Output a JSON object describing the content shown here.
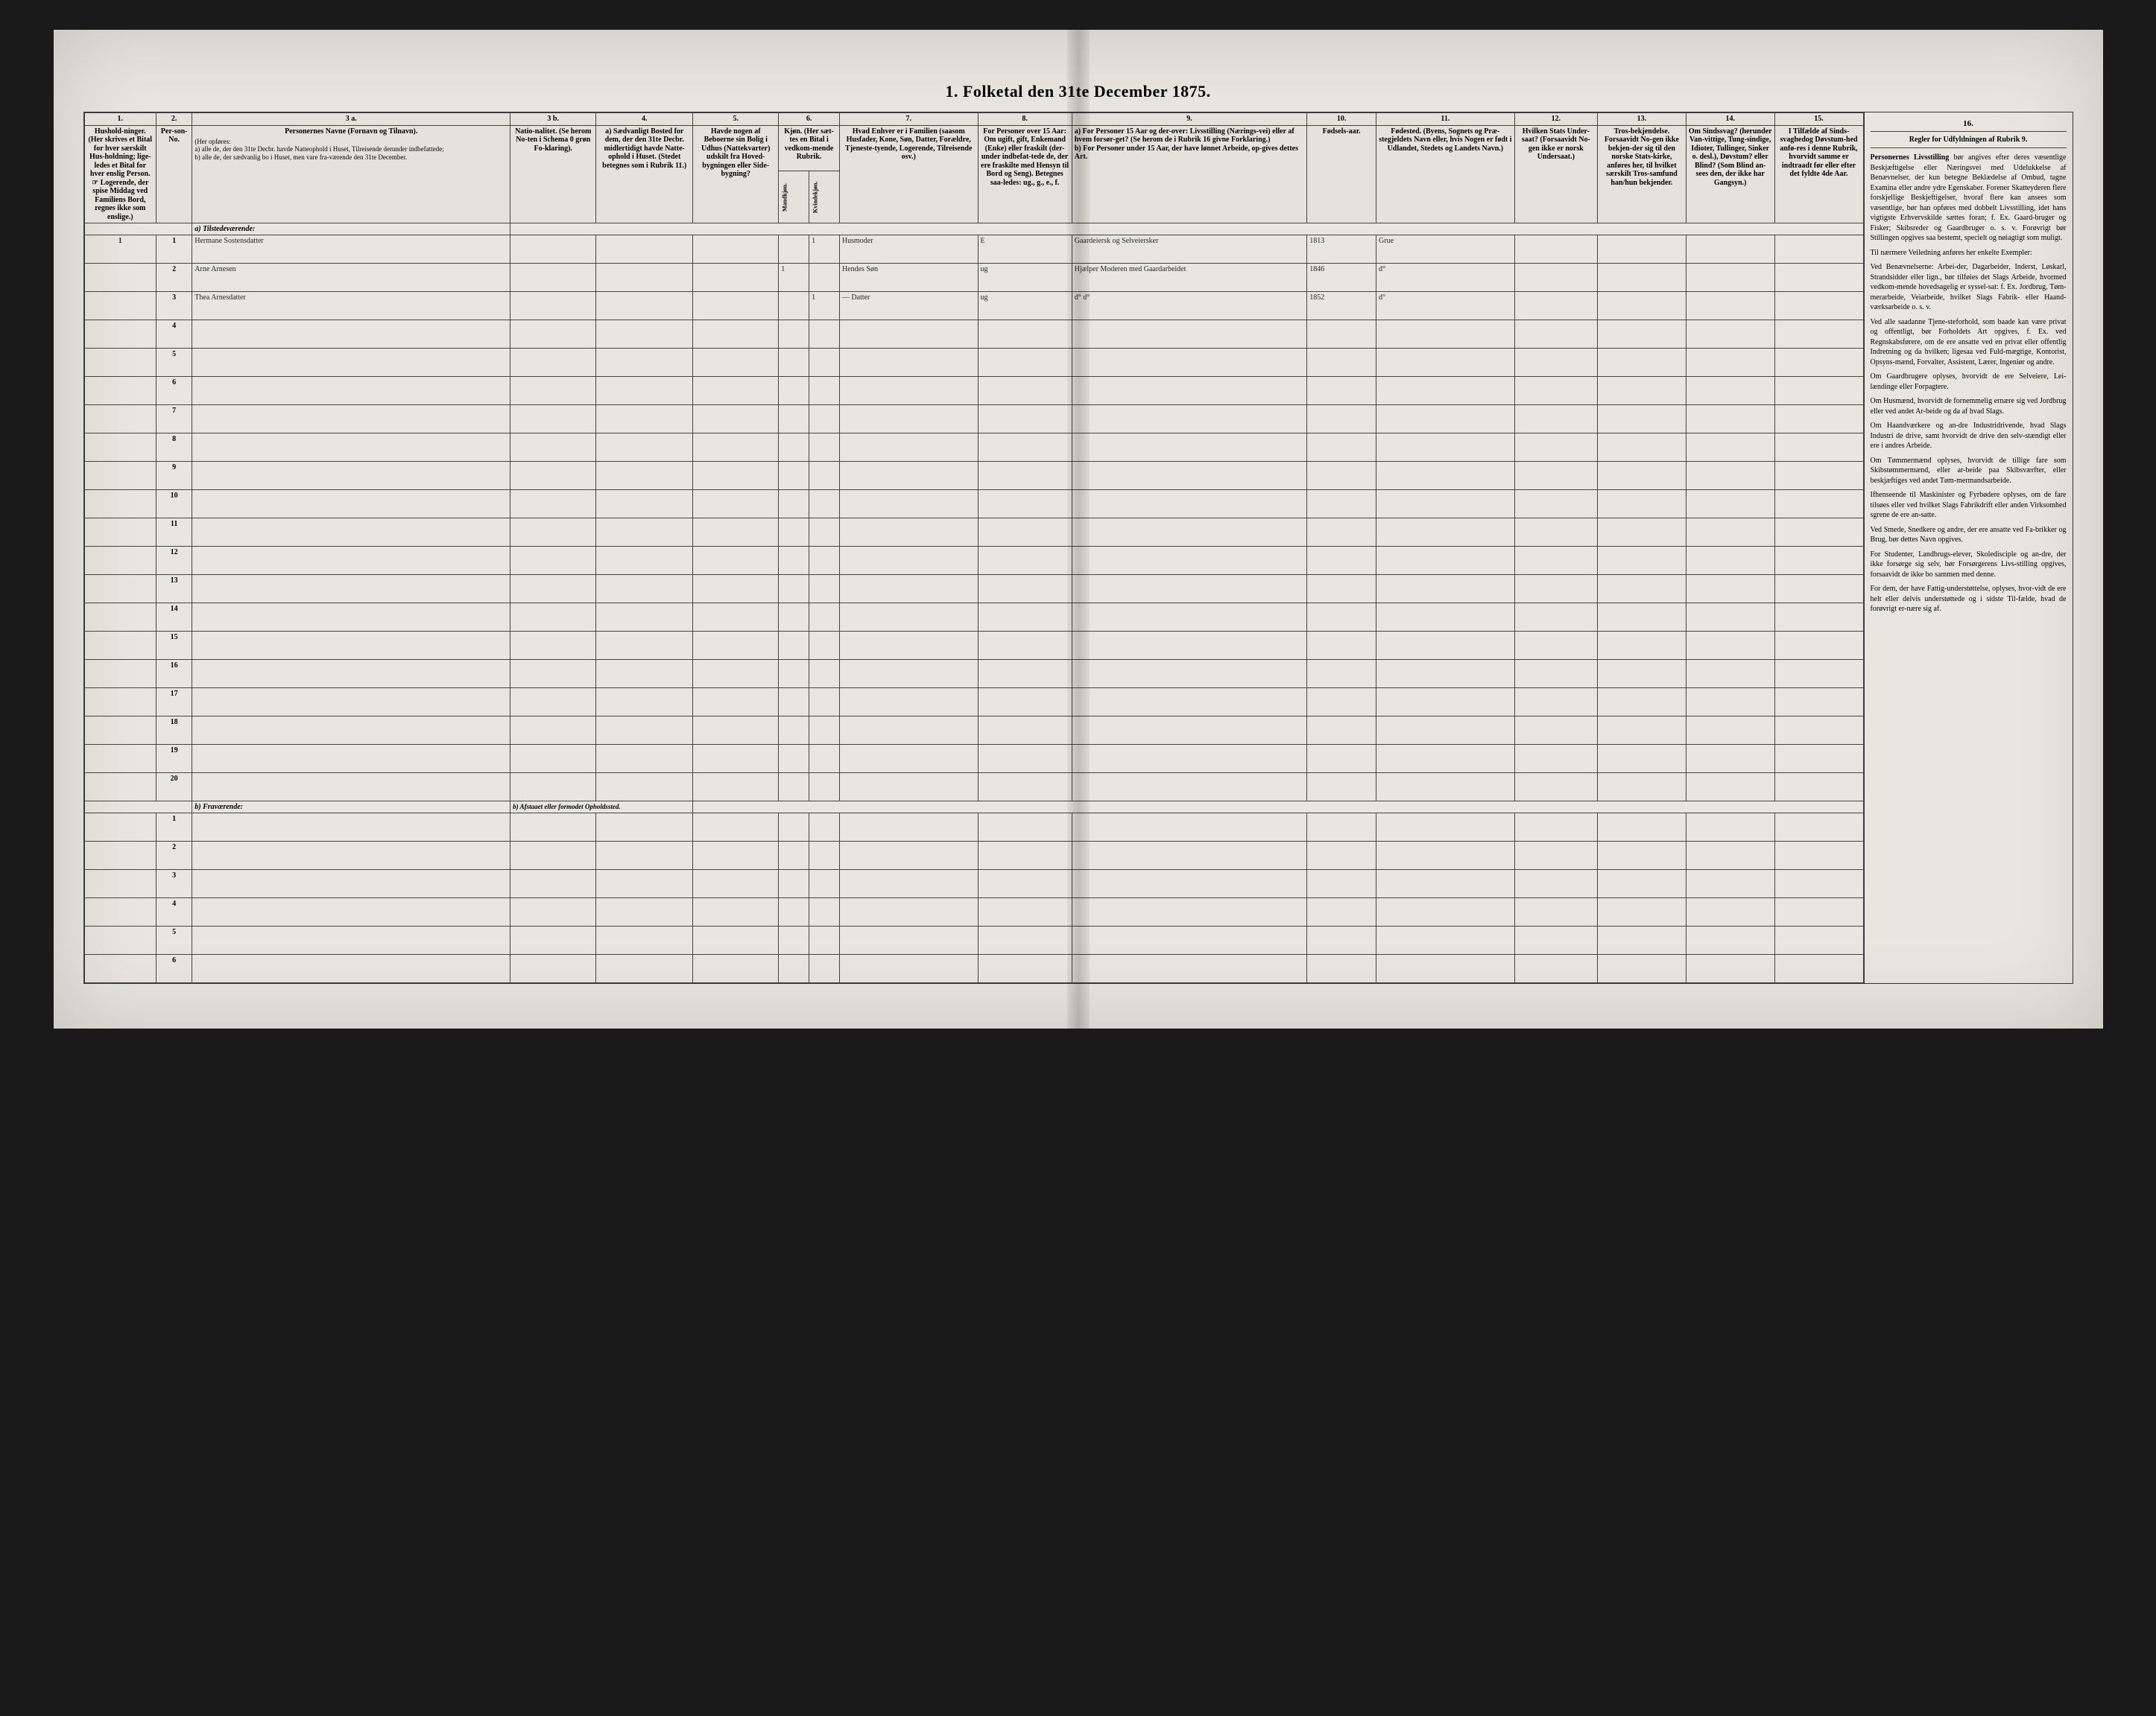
{
  "title": "1. Folketal den 31te December 1875.",
  "columns": {
    "nums": [
      "1.",
      "2.",
      "3 a.",
      "3 b.",
      "4.",
      "5.",
      "6.",
      "7.",
      "8.",
      "9.",
      "10.",
      "11.",
      "12.",
      "13.",
      "14.",
      "15.",
      "16."
    ],
    "h1": "Hushold-ninger. (Her skrives et Bital for hver særskilt Hus-holdning; lige-ledes et Bital for hver enslig Person. ☞ Logerende, der spise Middag ved Familiens Bord, regnes ikke som enslige.)",
    "h2": "Per-son-No.",
    "h3a_title": "Personernes Navne (Fornavn og Tilnavn).",
    "h3a_body": "(Her opføres:\na) alle de, der den 31te Decbr. havde Natteophold i Huset, Tilreisende derunder indbefattede;\nb) alle de, der sædvanlig bo i Huset, men vare fra-værende den 31te December.",
    "h3b": "Natio-nalitet. (Se herom No-ten i Schema 0 grøn Fo-klaring).",
    "h4": "a) Sædvanligt Bosted for dem, der den 31te Decbr. midlertidigt havde Natte-ophold i Huset. (Stedet betegnes som i Rubrik 11.)",
    "h5": "Havde nogen af Beboerne sin Bolig i Udhus (Nattekvarter) udskilt fra Hoved-bygningen eller Side-bygning?",
    "h6": "Kjøn. (Her sæt-tes en Bital i vedkom-mende Rubrik.",
    "h6a": "Mandkjøn.",
    "h6b": "Kvindekjøn.",
    "h7": "Hvad Enhver er i Familien (saasom Husfader, Kone, Søn, Datter, Forældre, Tjeneste-tyende, Logerende, Tilreisende osv.)",
    "h8": "For Personer over 15 Aar: Om ugift, gift, Enkemand (Enke) eller fraskilt (der-under indbefat-tede de, der ere fraskilte med Hensyn til Bord og Seng). Betegnes saa-ledes: ug., g., e., f.",
    "h9": "a) For Personer 15 Aar og der-over: Livsstilling (Nærings-vei) eller af hvem forsør-get? (Se herom de i Rubrik 16 givne Forklaring.)\nb) For Personer under 15 Aar, der have lønnet Arbeide, op-gives dettes Art.",
    "h10": "Fødsels-aar.",
    "h11": "Fødested. (Byens, Sognets og Præ-stegjeldets Navn eller, hvis Nogen er født i Udlandet, Stedets og Landets Navn.)",
    "h12": "Hvilken Stats Under-saat? (Forsaavidt No-gen ikke er norsk Undersaat.)",
    "h13": "Tros-bekjendelse. Forsaavidt No-gen ikke bekjen-der sig til den norske Stats-kirke, anføres her, til hvilket særskilt Tros-samfund han/hun bekjender.",
    "h14": "Om Sindssvag? (herunder Van-vittige, Tung-sindige, Idioter, Tullinger, Sinker o. desl.), Døvstum? eller Blind? (Som Blind an-sees den, der ikke har Gangsyn.)",
    "h15": "I Tilfælde af Sinds-svaghedog Døvstum-hed anfø-res i denne Rubrik, hvorvidt samme er indtraadt før eller efter det fyldte 4de Aar.",
    "h16": "Regler for Udfyldningen af Rubrik 9."
  },
  "section_a": "a) Tilstedeværende:",
  "section_b": "b) Fraværende:",
  "section_b_right": "b) Afstaaet eller formodet Opholdssted.",
  "rows_a": [
    {
      "hh": "1",
      "pn": "1",
      "name": "Hermane Sostensdatter",
      "mk": "",
      "kv": "1",
      "fam": "Husmoder",
      "civ": "E",
      "occ": "Gaardeiersk og Selveiersker",
      "yr": "1813",
      "born": "Grue"
    },
    {
      "hh": "",
      "pn": "2",
      "name": "Arne Arnesen",
      "mk": "1",
      "kv": "",
      "fam": "Hendes Søn",
      "civ": "ug",
      "occ": "Hjælper Moderen med Gaardarbeidet",
      "yr": "1846",
      "born": "d°"
    },
    {
      "hh": "",
      "pn": "3",
      "name": "Thea Arnesdatter",
      "mk": "",
      "kv": "1",
      "fam": "— Datter",
      "civ": "ug",
      "occ": "d° d°",
      "yr": "1852",
      "born": "d°"
    }
  ],
  "blank_a_start": 4,
  "blank_a_end": 20,
  "blank_b_count": 6,
  "rules": {
    "heading": "Personernes Livsstilling",
    "p1": "bør angives efter deres væsentlige Beskjæftigelse eller Næringsvei med Udelukkelse af Benævnelser, der kun betegne Beklædelse af Ombud, tagne Examina eller andre ydre Egenskaber. Forener Skatteyderen flere forskjellige Beskjeftigelser, hvoraf flere kan ansees som væsentlige, bør han opføres med dobbelt Livsstilling, idet hans vigtigste Erhvervskilde sættes foran; f. Ex. Gaard-bruger og Fisker; Skibsreder og Gaardbruger o. s. v. Forøvrigt bør Stillingen opgives saa bestemt, specielt og nøiagtigt som muligt.",
    "p2": "Til nærmere Veiledning anføres her enkelte Exempler:",
    "p3": "Ved Benævnelserne: Arbei-der, Dagarbeider, Inderst, Løskarl, Strandsidder eller lign., bør tilføies det Slags Arbeide, hvormed vedkom-mende hovedsagelig er syssel-sat: f. Ex. Jordbrug, Tøm-merarbeide, Veiarbeide, hvilket Slags Fabrik- eller Haand-værksarbeide o. s. v.",
    "p4": "Ved alle saadanne Tjene-steforhold, som baade kan være privat og offentligt, bør Forholdets Art opgives, f. Ex. ved Regnskabsførere, om de ere ansatte ved en privat eller offentlig Indretning og da hvilken; ligesaa ved Fuld-mægtige, Kontorist, Opsyns-mænd, Forvalter, Assistent, Lærer, Ingeniør og andre.",
    "p5": "Om Gaardbrugere oplyses, hvorvidt de ere Selveiere, Lei-lændinge eller Forpagtere.",
    "p6": "Om Husmænd, hvorvidt de fornemmelig ernære sig ved Jordbrug eller ved andet Ar-beide og da af hvad Slags.",
    "p7": "Om Haandværkere og an-dre Industridrivende, hvad Slags Industri de drive, samt hvorvidt de drive den selv-stændigt eller ere i andres Arbeide.",
    "p8": "Om Tømmermænd oplyses, hvorvidt de tillige fare som Skibstømmermænd, eller ar-beide paa Skibsværfter, eller beskjæftiges ved andet Tøm-mermandsarbeide.",
    "p9": "Ifhenseende til Maskinister og Fyrbødere oplyses, om de fare tilsøes eller ved hvilket Slags Fabrikdrift eller anden Virksomhed sgrene de ere an-satte.",
    "p10": "Ved Smede, Snedkere og andre, der ere ansatte ved Fa-brikker og Brug, bør dettes Navn opgives.",
    "p11": "For Studenter, Landbrugs-elever, Skoledisciple og an-dre, der ikke forsørge sig selv, bør Forsørgerens Livs-stilling opgives, forsaavidt de ikke bo sammen med denne.",
    "p12": "For dem, der have Fattig-understøttelse, oplyses, hvor-vidt de ere helt eller delvis understøttede og i sidste Til-fælde, hvad de forøvrigt er-nære sig af."
  }
}
